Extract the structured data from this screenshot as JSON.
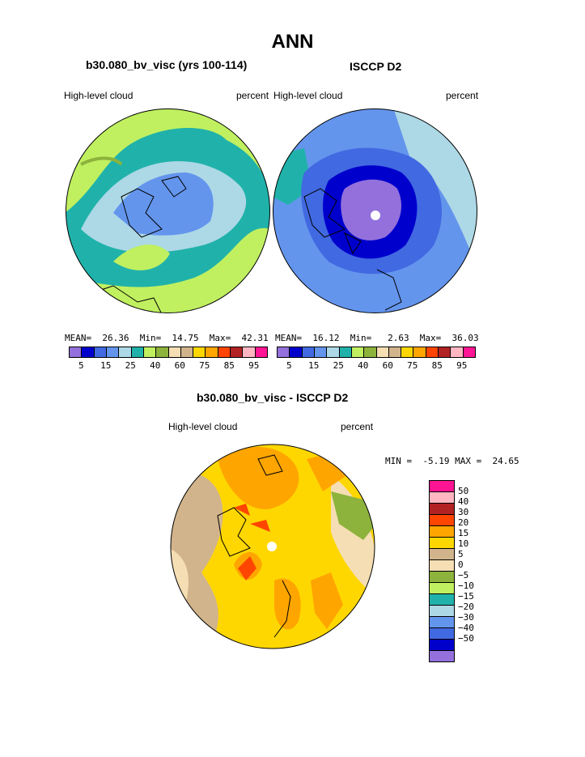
{
  "page": {
    "title": "ANN",
    "left_title": "b30.080_bv_visc (yrs 100-114)",
    "right_title": "ISCCP D2",
    "bottom_title": "b30.080_bv_visc - ISCCP D2"
  },
  "left_panel": {
    "variable": "High-level cloud",
    "units": "percent",
    "stats": "MEAN=  26.36  Min=  14.75  Max=  42.31"
  },
  "right_panel": {
    "variable": "High-level cloud",
    "units": "percent",
    "stats": "MEAN=  16.12  Min=   2.63  Max=  36.03"
  },
  "diff_panel": {
    "variable": "High-level cloud",
    "units": "percent",
    "stats": "MIN =  -5.19 MAX =  24.65"
  },
  "abs_colorbar": {
    "colors": [
      "#9370db",
      "#0000cd",
      "#4169e1",
      "#6495ed",
      "#add8e6",
      "#20b2aa",
      "#c0f060",
      "#8db33c",
      "#f5deb3",
      "#d2b48c",
      "#ffd700",
      "#ffa500",
      "#ff4500",
      "#b22222",
      "#ffb6c1",
      "#ff1493"
    ],
    "labels": [
      "5",
      "15",
      "25",
      "40",
      "60",
      "75",
      "85",
      "95"
    ]
  },
  "diff_colorbar": {
    "colors": [
      "#ff1493",
      "#ffb6c1",
      "#b22222",
      "#ff4500",
      "#ffa500",
      "#ffd700",
      "#d2b48c",
      "#f5deb3",
      "#8db33c",
      "#c0f060",
      "#20b2aa",
      "#add8e6",
      "#6495ed",
      "#4169e1",
      "#0000cd",
      "#9370db"
    ],
    "labels": [
      "50",
      "40",
      "30",
      "20",
      "15",
      "10",
      "5",
      "0",
      "−5",
      "−10",
      "−15",
      "−20",
      "−30",
      "−40",
      "−50"
    ]
  }
}
